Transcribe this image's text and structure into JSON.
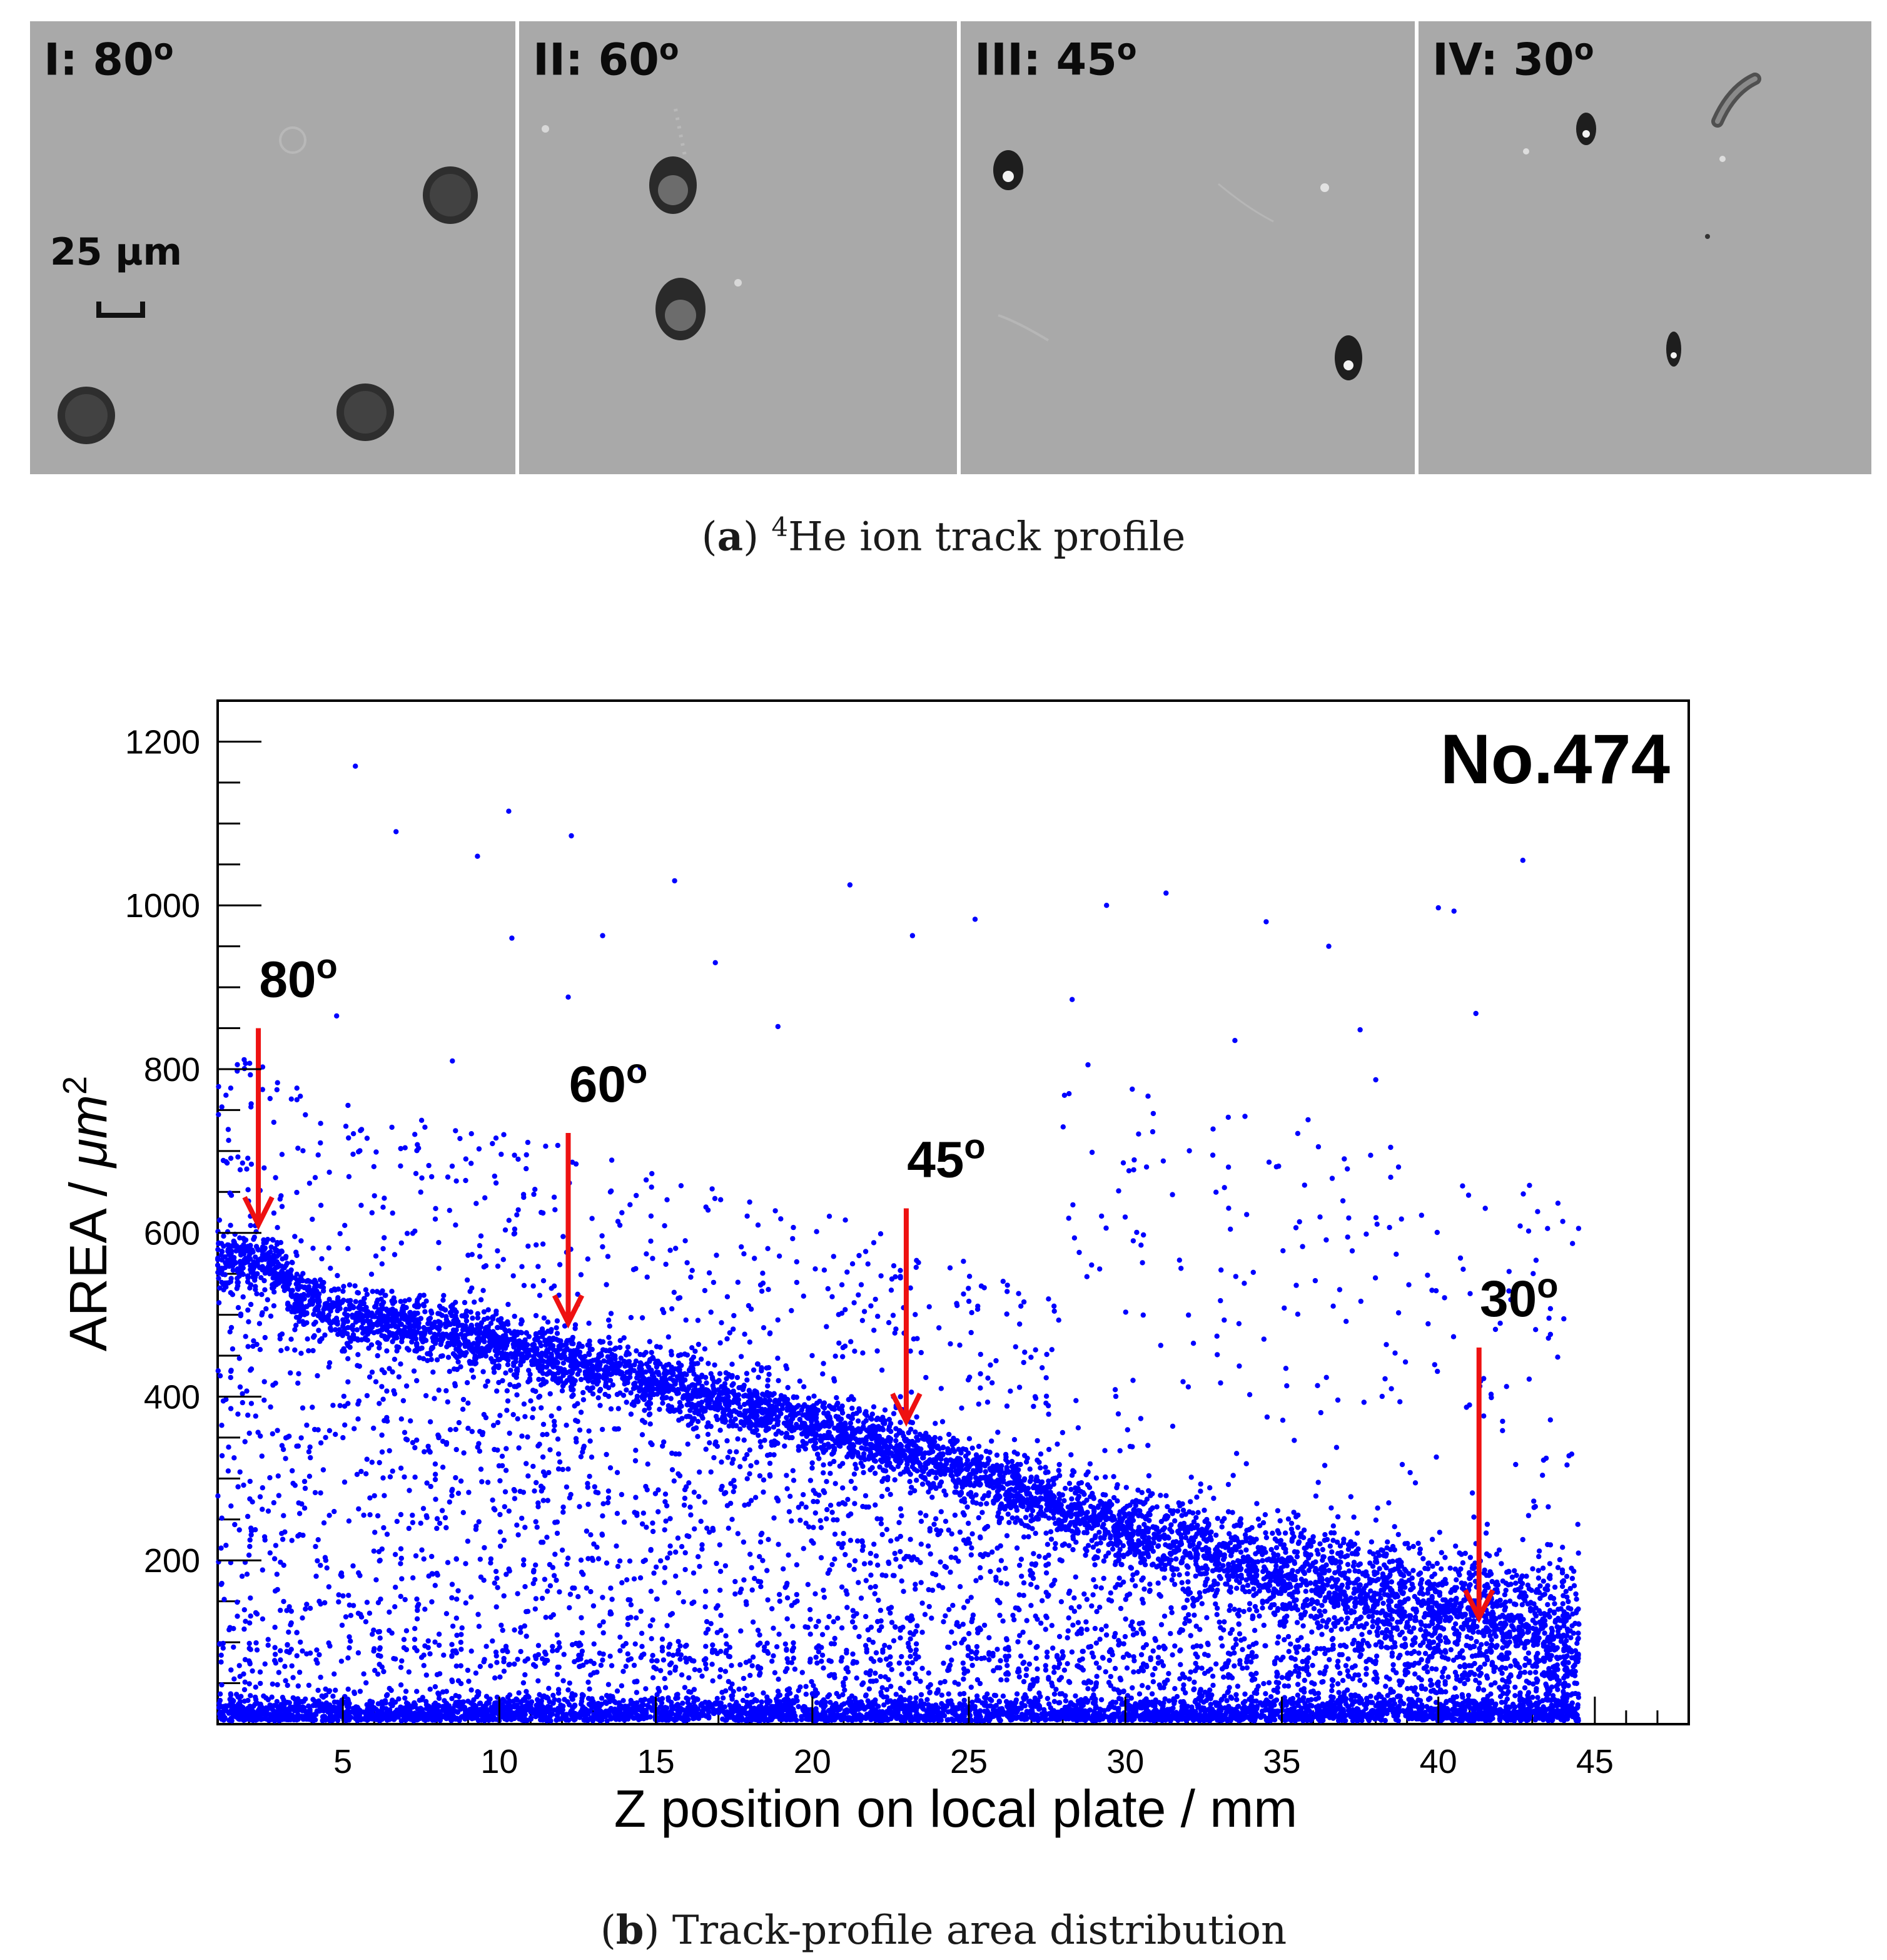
{
  "panel_a": {
    "panels": [
      {
        "id": "I",
        "prefix": "I: ",
        "angle": "80",
        "deg": "o"
      },
      {
        "id": "II",
        "prefix": "II: ",
        "angle": "60",
        "deg": "o"
      },
      {
        "id": "III",
        "prefix": "III: ",
        "angle": "45",
        "deg": "o"
      },
      {
        "id": "IV",
        "prefix": "IV: ",
        "angle": "30",
        "deg": "o"
      }
    ],
    "scale_bar_label": "25 µm",
    "caption_letter": "a",
    "caption_sup": "4",
    "caption_text": "He ion track profile"
  },
  "panel_b": {
    "caption_letter": "b",
    "caption_text": "Track-profile area distribution"
  },
  "colors": {
    "points": "#0000ff",
    "arrows": "#ee1111",
    "microscope_bg": "#a9a9a9"
  },
  "chart_data": {
    "type": "scatter",
    "title": "",
    "plate_label": "No.474",
    "xlabel": "Z position on local plate / mm",
    "ylabel_main": "AREA / ",
    "ylabel_unit": "μm",
    "ylabel_exp": "2",
    "xlim": [
      1,
      48
    ],
    "ylim": [
      0,
      1250
    ],
    "x_ticks": [
      5,
      10,
      15,
      20,
      25,
      30,
      35,
      40,
      45
    ],
    "y_ticks": [
      200,
      400,
      600,
      800,
      1000,
      1200
    ],
    "grid": false,
    "series": [
      {
        "name": "track area",
        "description": "dense band of track areas decreasing with Z plus background noise near zero",
        "band_x": [
          1.0,
          3.0,
          3.5,
          5,
          10,
          15,
          20,
          25,
          30,
          35,
          40,
          44.5
        ],
        "band_y": [
          570,
          560,
          520,
          500,
          465,
          420,
          370,
          310,
          240,
          190,
          150,
          120
        ],
        "x_range": [
          1.0,
          44.5
        ],
        "outliers": [
          {
            "x": 5.4,
            "y": 1170
          },
          {
            "x": 10.3,
            "y": 1115
          },
          {
            "x": 6.7,
            "y": 1090
          },
          {
            "x": 12.3,
            "y": 1085
          },
          {
            "x": 9.3,
            "y": 1060
          },
          {
            "x": 42.7,
            "y": 1055
          },
          {
            "x": 15.6,
            "y": 1030
          },
          {
            "x": 21.2,
            "y": 1025
          },
          {
            "x": 31.3,
            "y": 1015
          },
          {
            "x": 29.4,
            "y": 1000
          },
          {
            "x": 40.0,
            "y": 997
          },
          {
            "x": 40.5,
            "y": 993
          },
          {
            "x": 25.2,
            "y": 983
          },
          {
            "x": 34.5,
            "y": 980
          },
          {
            "x": 13.3,
            "y": 963
          },
          {
            "x": 23.2,
            "y": 963
          },
          {
            "x": 10.4,
            "y": 960
          },
          {
            "x": 36.5,
            "y": 950
          },
          {
            "x": 16.9,
            "y": 930
          },
          {
            "x": 28.3,
            "y": 885
          },
          {
            "x": 12.2,
            "y": 888
          },
          {
            "x": 4.8,
            "y": 865
          },
          {
            "x": 41.2,
            "y": 868
          },
          {
            "x": 33.5,
            "y": 835
          },
          {
            "x": 37.5,
            "y": 848
          },
          {
            "x": 18.9,
            "y": 852
          },
          {
            "x": 14.5,
            "y": 802
          },
          {
            "x": 38.0,
            "y": 787
          },
          {
            "x": 28.2,
            "y": 770
          },
          {
            "x": 8.5,
            "y": 810
          },
          {
            "x": 10.6,
            "y": 690
          },
          {
            "x": 41.5,
            "y": 630
          }
        ]
      }
    ],
    "annotations": [
      {
        "label": "80",
        "deg": "o",
        "x": 2.3,
        "y_tip": 610,
        "y_top": 850
      },
      {
        "label": "60",
        "deg": "o",
        "x": 12.2,
        "y_tip": 490,
        "y_top": 722
      },
      {
        "label": "45",
        "deg": "o",
        "x": 23.0,
        "y_tip": 370,
        "y_top": 630
      },
      {
        "label": "30",
        "deg": "o",
        "x": 41.3,
        "y_tip": 130,
        "y_top": 460
      }
    ]
  }
}
